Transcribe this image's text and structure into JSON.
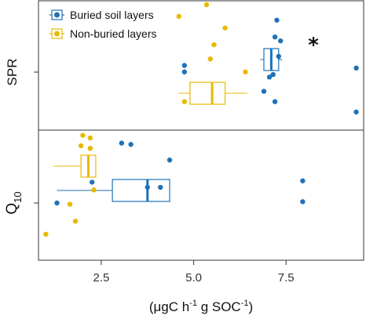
{
  "chart_data": {
    "type": "boxplot",
    "orientation": "horizontal",
    "xlabel": {
      "prefix": "(μgC h",
      "sup1": "-1",
      "mid": " g SOC",
      "sup2": "-1",
      "suffix": ")"
    },
    "xlim": [
      0.8,
      9.6
    ],
    "xticks": [
      2.5,
      5.0,
      7.5
    ],
    "xtick_labels": [
      "2.5",
      "5.0",
      "7.5"
    ],
    "grid": false,
    "legend_position": "top-left",
    "annotation": "*",
    "legend": [
      {
        "label": "Buried soil layers",
        "color": "#1f72b8"
      },
      {
        "label": "Non-buried layers",
        "color": "#e8b900"
      }
    ],
    "panels": [
      {
        "ylabel": {
          "main": "SPR",
          "sub": ""
        },
        "annotation_text": "*",
        "groups": [
          {
            "series": "Buried soil layers",
            "color": "#1f72b8",
            "box": {
              "whisker_low": 6.8,
              "q1": 6.9,
              "median": 7.1,
              "q3": 7.3,
              "whisker_high": 7.4
            },
            "points": [
              [
                7.25,
                0.85
              ],
              [
                7.2,
                0.72
              ],
              [
                7.35,
                0.69
              ],
              [
                7.3,
                0.57
              ],
              [
                7.15,
                0.43
              ],
              [
                7.05,
                0.41
              ],
              [
                6.9,
                0.3
              ],
              [
                7.2,
                0.22
              ],
              [
                9.4,
                0.48
              ],
              [
                9.4,
                0.14
              ],
              [
                4.75,
                0.5
              ],
              [
                4.75,
                0.45
              ]
            ]
          },
          {
            "series": "Non-buried layers",
            "color": "#e8b900",
            "box": {
              "whisker_low": 4.6,
              "q1": 4.9,
              "median": 5.5,
              "q3": 5.85,
              "whisker_high": 6.45
            },
            "points": [
              [
                4.6,
                0.88
              ],
              [
                5.35,
                0.97
              ],
              [
                5.85,
                0.79
              ],
              [
                5.55,
                0.66
              ],
              [
                5.45,
                0.55
              ],
              [
                6.4,
                0.45
              ],
              [
                4.75,
                0.22
              ]
            ]
          }
        ]
      },
      {
        "ylabel": {
          "main": "Q",
          "sub": "10"
        },
        "annotation_text": "",
        "groups": [
          {
            "series": "Buried soil layers",
            "color": "#1f72b8",
            "box": {
              "whisker_low": 1.3,
              "q1": 2.8,
              "median": 3.75,
              "q3": 4.35,
              "whisker_high": 4.35
            },
            "points": [
              [
                3.05,
                0.9
              ],
              [
                3.3,
                0.89
              ],
              [
                4.35,
                0.77
              ],
              [
                2.25,
                0.6
              ],
              [
                3.75,
                0.56
              ],
              [
                4.1,
                0.56
              ],
              [
                1.3,
                0.44
              ],
              [
                7.95,
                0.61
              ],
              [
                7.95,
                0.45
              ]
            ]
          },
          {
            "series": "Non-buried layers",
            "color": "#e8b900",
            "box": {
              "whisker_low": 1.2,
              "q1": 1.95,
              "median": 2.15,
              "q3": 2.35,
              "whisker_high": 2.35
            },
            "points": [
              [
                2.0,
                0.96
              ],
              [
                2.2,
                0.94
              ],
              [
                1.95,
                0.88
              ],
              [
                2.2,
                0.86
              ],
              [
                2.3,
                0.54
              ],
              [
                1.65,
                0.43
              ],
              [
                1.8,
                0.3
              ],
              [
                1.0,
                0.2
              ]
            ]
          }
        ]
      }
    ]
  }
}
